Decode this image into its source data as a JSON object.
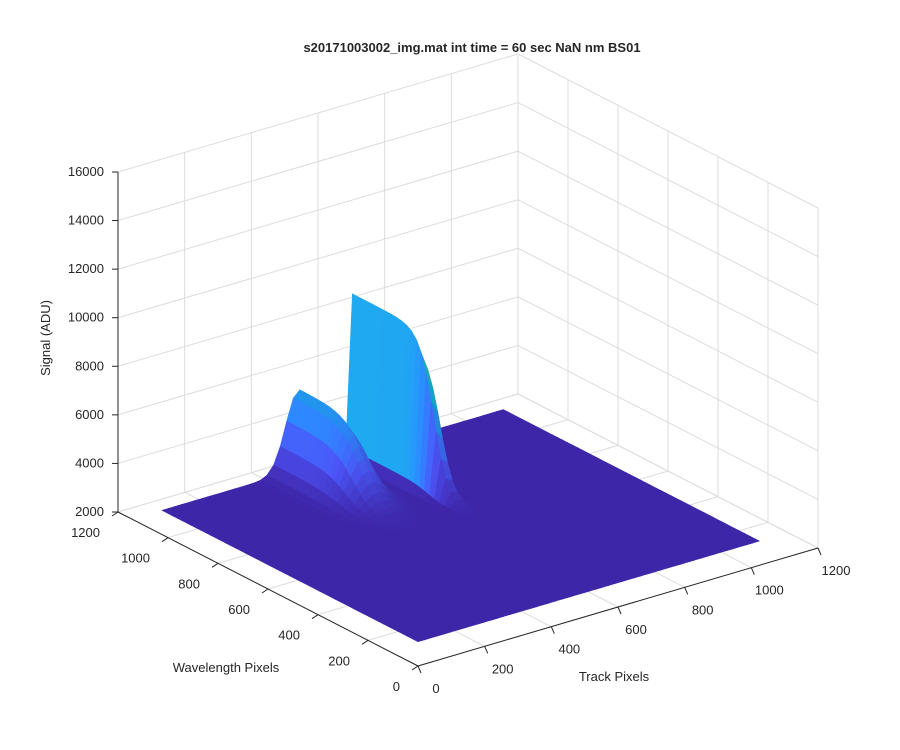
{
  "chart_data": {
    "type": "surface",
    "title": "s20171003002_img.mat int time = 60 sec  NaN nm BS01",
    "xlabel": "Track Pixels",
    "ylabel": "Wavelength Pixels",
    "zlabel": "Signal (ADU)",
    "xlim": [
      0,
      1200
    ],
    "ylim": [
      0,
      1200
    ],
    "zlim": [
      2000,
      16000
    ],
    "x_ticks": [
      "0",
      "200",
      "400",
      "600",
      "800",
      "1000",
      "1200"
    ],
    "y_ticks": [
      "0",
      "200",
      "400",
      "600",
      "800",
      "1000",
      "1200"
    ],
    "z_ticks": [
      "2000",
      "4000",
      "6000",
      "8000",
      "10000",
      "12000",
      "14000",
      "16000"
    ],
    "grid": true,
    "colormap": "parula",
    "baseline_signal": 3000,
    "data_extent": {
      "track_max": 1024,
      "wavelength_max": 1024
    },
    "features": [
      {
        "name": "main peak",
        "track": 580,
        "wavelength_range": [
          640,
          1024
        ],
        "max_signal": 12000
      },
      {
        "name": "secondary ridge",
        "track": 410,
        "wavelength_range": [
          700,
          1024
        ],
        "max_signal": 6300
      }
    ]
  }
}
